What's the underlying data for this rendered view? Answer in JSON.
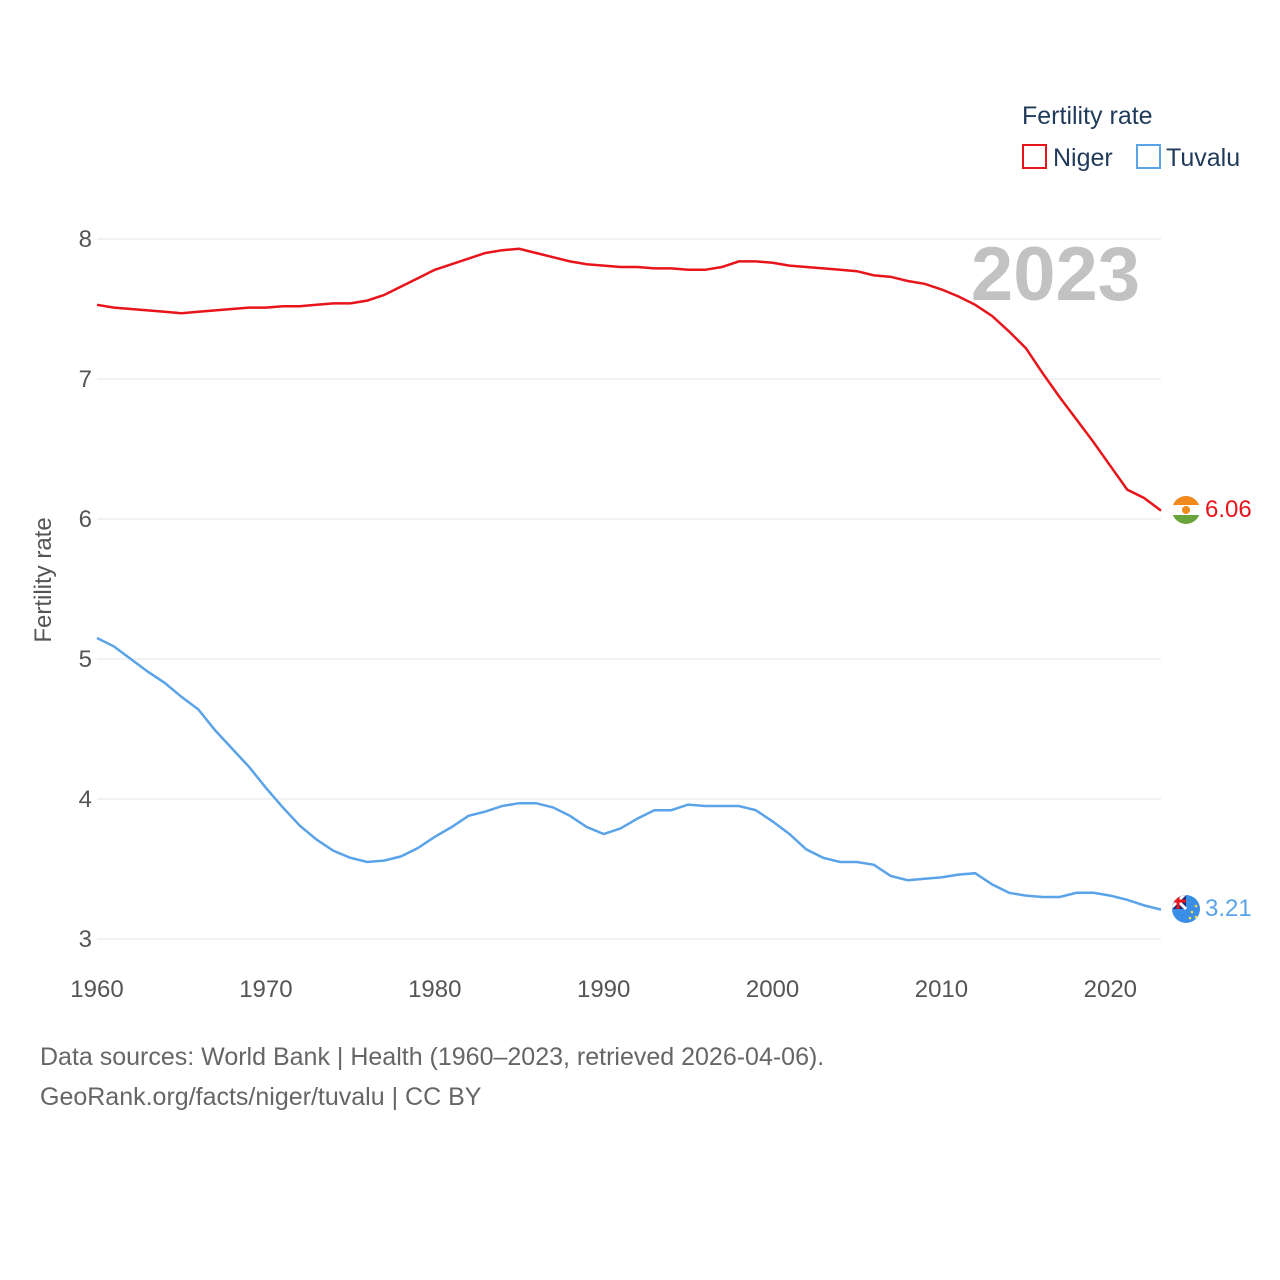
{
  "chart_data": {
    "type": "line",
    "legend_title": "Fertility rate",
    "ylabel": "Fertility rate",
    "current_year_label": "2023",
    "x_ticks": [
      1960,
      1970,
      1980,
      1990,
      2000,
      2010,
      2020
    ],
    "y_ticks": [
      3,
      4,
      5,
      6,
      7,
      8
    ],
    "xlim": [
      1960,
      2023
    ],
    "ylim": [
      3,
      8
    ],
    "legend_position": "top-right",
    "x": [
      1960,
      1961,
      1962,
      1963,
      1964,
      1965,
      1966,
      1967,
      1968,
      1969,
      1970,
      1971,
      1972,
      1973,
      1974,
      1975,
      1976,
      1977,
      1978,
      1979,
      1980,
      1981,
      1982,
      1983,
      1984,
      1985,
      1986,
      1987,
      1988,
      1989,
      1990,
      1991,
      1992,
      1993,
      1994,
      1995,
      1996,
      1997,
      1998,
      1999,
      2000,
      2001,
      2002,
      2003,
      2004,
      2005,
      2006,
      2007,
      2008,
      2009,
      2010,
      2011,
      2012,
      2013,
      2014,
      2015,
      2016,
      2017,
      2018,
      2019,
      2020,
      2021,
      2022,
      2023
    ],
    "series": [
      {
        "name": "Niger",
        "color": "#e8141b",
        "end_label": "6.06",
        "flag": "niger-flag",
        "values": [
          7.53,
          7.51,
          7.5,
          7.49,
          7.48,
          7.47,
          7.48,
          7.49,
          7.5,
          7.51,
          7.51,
          7.52,
          7.52,
          7.53,
          7.54,
          7.54,
          7.56,
          7.6,
          7.66,
          7.72,
          7.78,
          7.82,
          7.86,
          7.9,
          7.92,
          7.93,
          7.9,
          7.87,
          7.84,
          7.82,
          7.81,
          7.8,
          7.8,
          7.79,
          7.79,
          7.78,
          7.78,
          7.8,
          7.84,
          7.84,
          7.83,
          7.81,
          7.8,
          7.79,
          7.78,
          7.77,
          7.74,
          7.73,
          7.7,
          7.68,
          7.64,
          7.59,
          7.53,
          7.45,
          7.34,
          7.22,
          7.04,
          6.87,
          6.71,
          6.55,
          6.38,
          6.21,
          6.15,
          6.06
        ]
      },
      {
        "name": "Tuvalu",
        "color": "#5ba3e8",
        "end_label": "3.21",
        "flag": "tuvalu-flag",
        "values": [
          5.15,
          5.09,
          5.0,
          4.91,
          4.83,
          4.73,
          4.64,
          4.49,
          4.36,
          4.23,
          4.08,
          3.94,
          3.81,
          3.71,
          3.63,
          3.58,
          3.55,
          3.56,
          3.59,
          3.65,
          3.73,
          3.8,
          3.88,
          3.91,
          3.95,
          3.97,
          3.97,
          3.94,
          3.88,
          3.8,
          3.75,
          3.79,
          3.86,
          3.92,
          3.92,
          3.96,
          3.95,
          3.95,
          3.95,
          3.92,
          3.84,
          3.75,
          3.64,
          3.58,
          3.55,
          3.55,
          3.53,
          3.45,
          3.42,
          3.43,
          3.44,
          3.46,
          3.47,
          3.39,
          3.33,
          3.31,
          3.3,
          3.3,
          3.33,
          3.33,
          3.31,
          3.28,
          3.24,
          3.21
        ]
      }
    ]
  },
  "footer": {
    "line1": "Data sources: World Bank | Health (1960–2023, retrieved 2026-04-06).",
    "line2": "GeoRank.org/facts/niger/tuvalu | CC BY"
  }
}
